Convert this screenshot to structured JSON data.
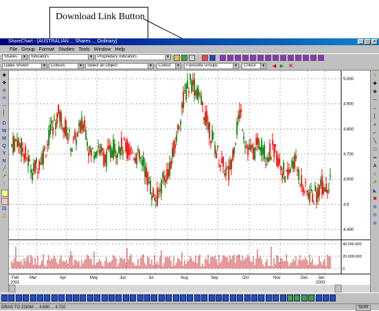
{
  "annotation": {
    "callout_text": "Download Link Button"
  },
  "window": {
    "title": "ShareChart - [AUSTRALIAN ... Shares ... Ordinary]"
  },
  "menu": [
    "File",
    "Group",
    "Format",
    "Studies",
    "Tools",
    "Window",
    "Help"
  ],
  "toolbar": {
    "combo_group": "Shares",
    "combo_indicators": "Indicators",
    "combo_proprietary": "Proprietary Indicators",
    "combo_period": "Dates Shown",
    "combo_colours": "Colours",
    "combo_select": "Select an Object",
    "combo_color1": "Colour",
    "combo_fav": "Favourite Groups",
    "combo_color2": "Colour"
  },
  "chart_data": {
    "type": "candlestick",
    "price_axis": [
      "5.000",
      "4.900",
      "4.800",
      "4.700",
      "4.600",
      "4.5",
      "4.400"
    ],
    "volume_axis": [
      "40,000,000",
      "20,000,000",
      "0"
    ],
    "month_labels": [
      "Feb",
      "Mar",
      "Apr",
      "May",
      "Jun",
      "Jul",
      "Aug",
      "Sep",
      "Oct",
      "Nov",
      "Dec",
      "Jan"
    ],
    "year_labels": [
      "2002",
      "2003"
    ],
    "up_color": "#008000",
    "down_color": "#ff0000",
    "volume_color": "#c00000",
    "grid": true
  },
  "status": {
    "left": "DRAG TO ZOOM ... 4.690 ... 4.710",
    "right": "NUM"
  }
}
